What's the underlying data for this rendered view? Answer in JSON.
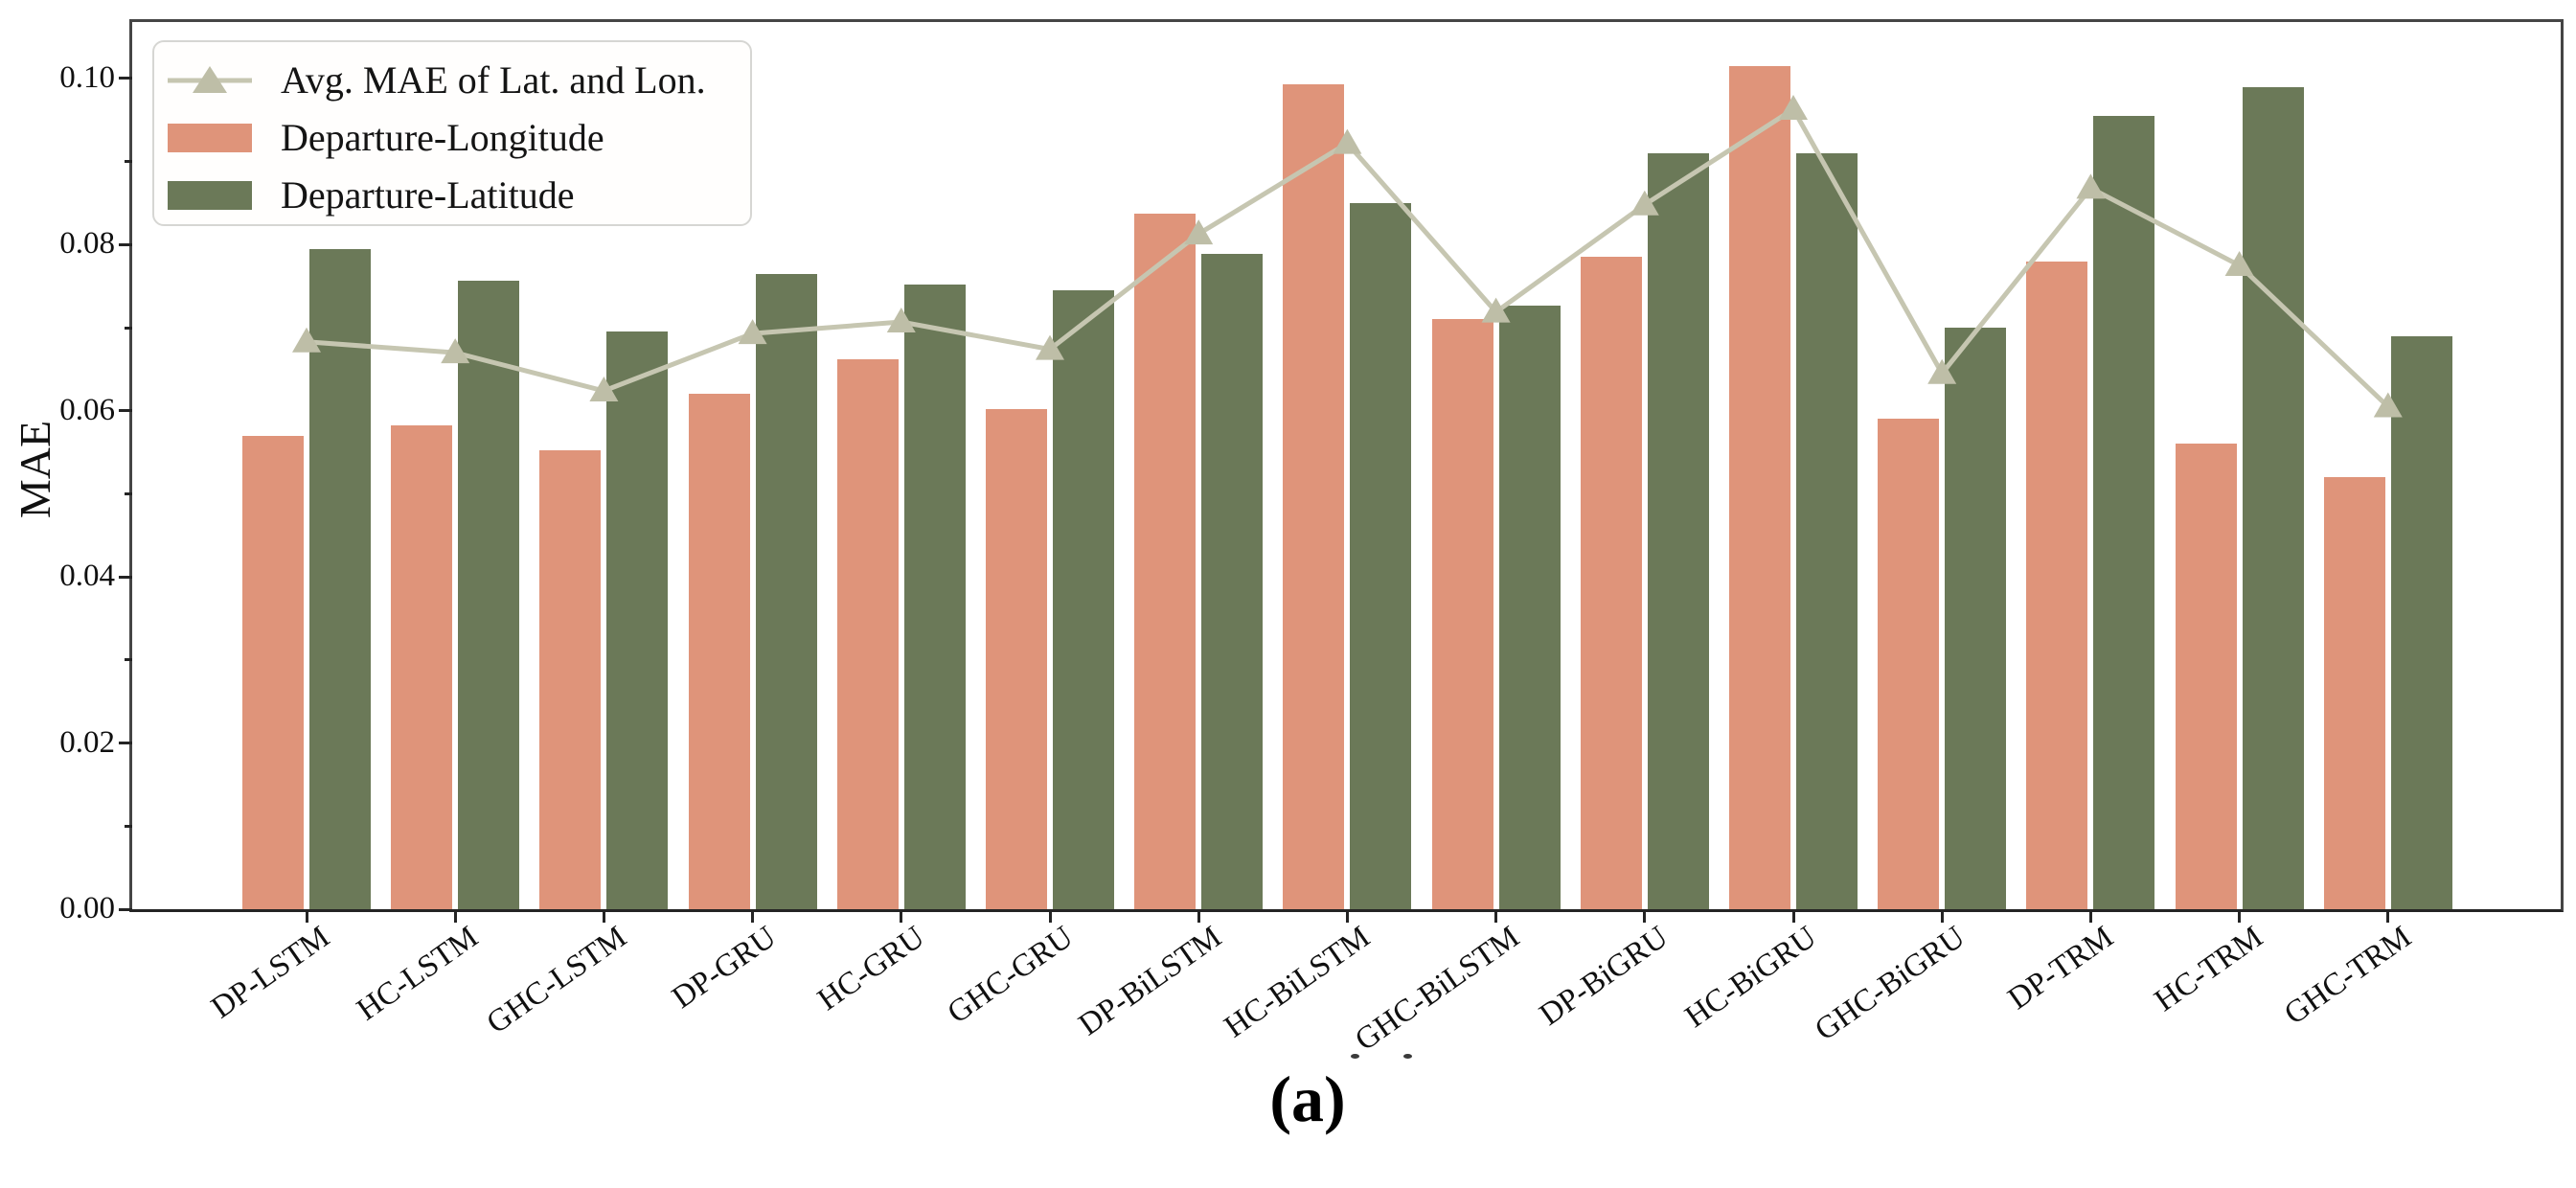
{
  "figure": {
    "caption": "(a)",
    "background": "#ffffff"
  },
  "chart_data": {
    "type": "bar",
    "title": "",
    "xlabel": "",
    "ylabel": "MAE",
    "legend_position": "upper-left",
    "grid": false,
    "axis_color": "#454545",
    "categories": [
      "DP-LSTM",
      "HC-LSTM",
      "GHC-LSTM",
      "DP-GRU",
      "HC-GRU",
      "GHC-GRU",
      "DP-BiLSTM",
      "HC-BiLSTM",
      "GHC-BiLSTM",
      "DP-BiGRU",
      "HC-BiGRU",
      "GHC-BiGRU",
      "DP-TRM",
      "HC-TRM",
      "GHC-TRM"
    ],
    "series": [
      {
        "name": "Departure-Longitude",
        "color": "#DF947A",
        "values": [
          0.057,
          0.0583,
          0.0553,
          0.062,
          0.0662,
          0.0602,
          0.0837,
          0.0993,
          0.0711,
          0.0785,
          0.1015,
          0.059,
          0.078,
          0.056,
          0.052
        ]
      },
      {
        "name": "Departure-Latitude",
        "color": "#6B7958",
        "values": [
          0.0795,
          0.0757,
          0.0695,
          0.0765,
          0.0752,
          0.0745,
          0.0789,
          0.085,
          0.0727,
          0.091,
          0.091,
          0.07,
          0.0955,
          0.099,
          0.069
        ]
      }
    ],
    "line_series": {
      "name": "Avg. MAE of Lat. and Lon.",
      "color": "#C6C6B1",
      "marker": "triangle-up",
      "marker_color": "#BEBEA7",
      "values": [
        0.0683,
        0.067,
        0.0624,
        0.0693,
        0.0707,
        0.0674,
        0.0813,
        0.0922,
        0.0719,
        0.0848,
        0.0963,
        0.0645,
        0.0868,
        0.0775,
        0.0605
      ]
    },
    "y_ticks": [
      "0.00",
      "0.02",
      "0.04",
      "0.06",
      "0.08",
      "0.10"
    ],
    "y_minor_ticks": [
      0.01,
      0.03,
      0.05,
      0.07,
      0.09
    ],
    "ylim": [
      0,
      0.1068
    ]
  }
}
